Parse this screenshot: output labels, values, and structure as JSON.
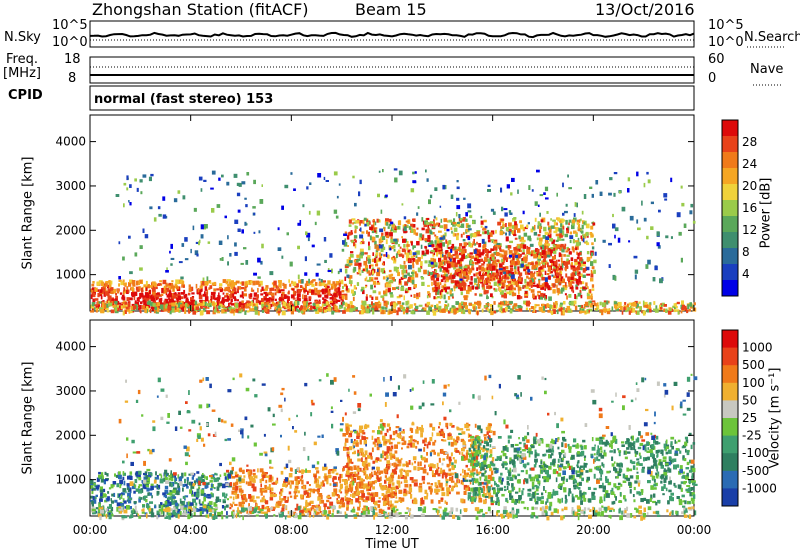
{
  "header": {
    "station": "Zhongshan Station (fitACF)",
    "beam": "Beam 15",
    "date": "13/Oct/2016"
  },
  "top_panels": {
    "nsky_label": "N.Sky",
    "nsearch_label": "N.Search",
    "nsky_ticks": [
      "10^5",
      "10^0"
    ],
    "nsearch_ticks": [
      "10^5",
      "10^0"
    ],
    "freq_label_1": "Freq.",
    "freq_label_2": "[MHz]",
    "freq_ticks": [
      "18",
      "8"
    ],
    "nave_label": "Nave",
    "nave_ticks": [
      "60",
      "0"
    ],
    "cpid_label": "CPID",
    "cpid_text": "normal (fast stereo) 153"
  },
  "chart_data": [
    {
      "type": "heatmap",
      "title": "Power",
      "xlabel": "Time UT",
      "ylabel": "Slant Range [km]",
      "x_ticks": [
        "00:00",
        "04:00",
        "08:00",
        "12:00",
        "16:00",
        "20:00",
        "00:00"
      ],
      "xlim_hours": [
        0,
        24
      ],
      "ylim": [
        180,
        4600
      ],
      "y_ticks": [
        1000,
        2000,
        3000,
        4000
      ],
      "colorbar": {
        "label": "Power [dB]",
        "ticks": [
          4,
          8,
          12,
          16,
          20,
          24,
          28
        ],
        "range": [
          0,
          30
        ],
        "colors": [
          "#0000e6",
          "#1a3fbf",
          "#2a6b9a",
          "#3f8f6f",
          "#5aa85a",
          "#9acb4a",
          "#f0d23a",
          "#f5a623",
          "#f07a1a",
          "#e8421a",
          "#dd0a0a"
        ]
      }
    },
    {
      "type": "heatmap",
      "title": "Velocity",
      "xlabel": "Time UT",
      "ylabel": "Slant Range [km]",
      "x_ticks": [
        "00:00",
        "04:00",
        "08:00",
        "12:00",
        "16:00",
        "20:00",
        "00:00"
      ],
      "xlim_hours": [
        0,
        24
      ],
      "ylim": [
        180,
        4600
      ],
      "y_ticks": [
        1000,
        2000,
        3000,
        4000
      ],
      "colorbar": {
        "label": "Velocity [m s⁻¹]",
        "ticks": [
          "1000",
          "500",
          "100",
          "50",
          "25",
          "-25",
          "-100",
          "-500",
          "-1000"
        ],
        "colors": [
          "#1a3fa8",
          "#2a6bb4",
          "#2f7f60",
          "#3f9f6f",
          "#6cc43a",
          "#c8c8c0",
          "#f0b030",
          "#f07a1a",
          "#e8421a",
          "#dd0a0a"
        ]
      }
    }
  ],
  "colors": {
    "gray": "#c8c8c0"
  }
}
